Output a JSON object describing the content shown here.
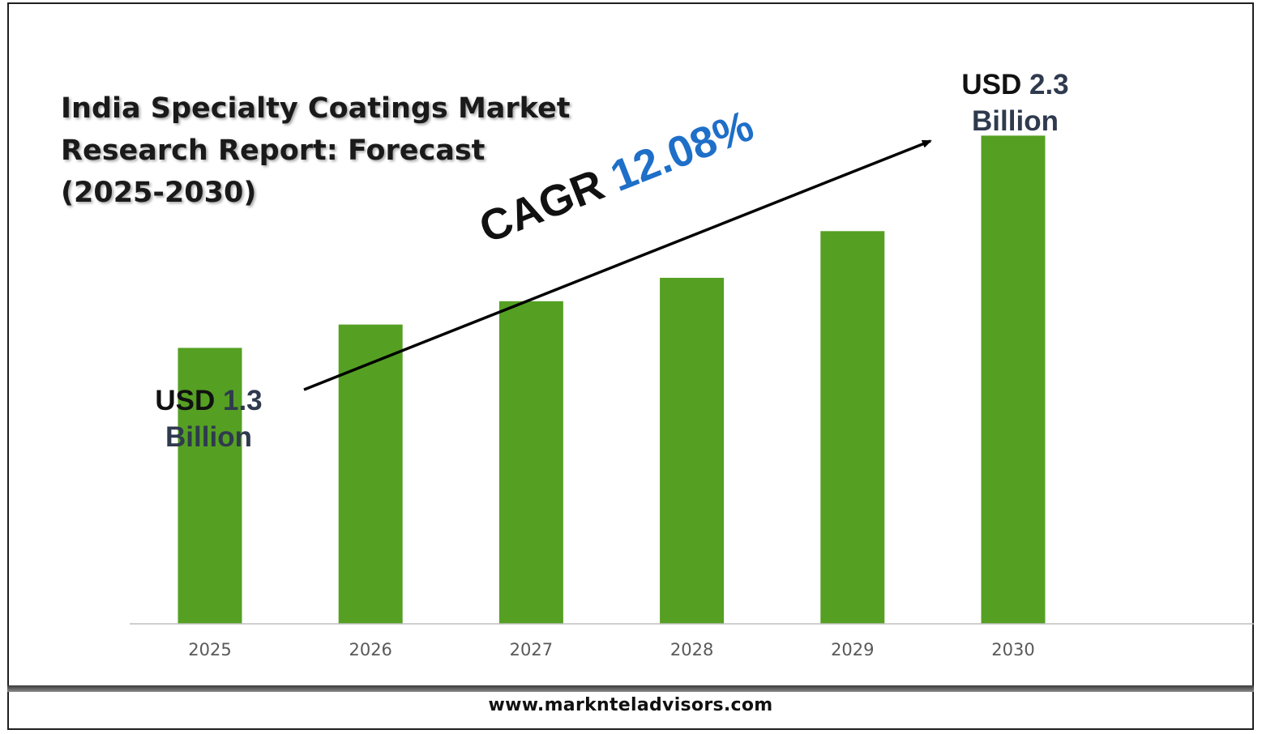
{
  "chart_data": {
    "type": "bar",
    "title_lines": [
      "India Specialty Coatings Market",
      "Research Report: Forecast",
      "(2025-2030)"
    ],
    "categories": [
      "2025",
      "2026",
      "2027",
      "2028",
      "2029",
      "2030"
    ],
    "values": [
      1.3,
      1.41,
      1.52,
      1.63,
      1.85,
      2.3
    ],
    "unit": "USD Billion",
    "ylim": [
      0,
      2.5
    ],
    "grid": false,
    "legend": "none",
    "bar_color": "#55a023",
    "annotations": {
      "start": {
        "prefix": "USD",
        "value": "1.3",
        "unit": "Billion"
      },
      "end": {
        "prefix": "USD",
        "value": "2.3",
        "unit": "Billion"
      },
      "cagr_label": "CAGR",
      "cagr_value": "12.08%"
    }
  },
  "footer": {
    "website": "www.marknteladvisors.com"
  },
  "colors": {
    "bar": "#55a023",
    "cagr_value": "#1e6fc8",
    "callout_value": "#2f3a4e",
    "axis": "#bfbfbf"
  }
}
